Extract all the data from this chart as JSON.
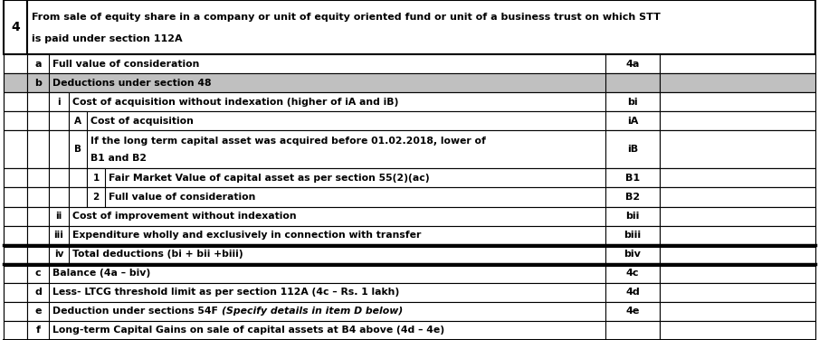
{
  "title_row": {
    "num": "4",
    "text_line1": "From sale of equity share in a company or unit of equity oriented fund or unit of a business trust on which STT",
    "text_line2": "is paid under section 112A"
  },
  "rows": [
    {
      "level": "a",
      "indent": 0,
      "label": "Full value of consideration",
      "code": "4a",
      "gray_bg": false,
      "double_border_top": false,
      "multiline": false,
      "mixed_style": false,
      "last_row": false
    },
    {
      "level": "b",
      "indent": 0,
      "label": "Deductions under section 48",
      "code": "",
      "gray_bg": true,
      "double_border_top": false,
      "multiline": false,
      "mixed_style": false,
      "last_row": false
    },
    {
      "level": "i",
      "indent": 1,
      "label": "Cost of acquisition without indexation (higher of iA and iB)",
      "code": "bi",
      "gray_bg": false,
      "double_border_top": false,
      "multiline": false,
      "mixed_style": false,
      "last_row": false
    },
    {
      "level": "A",
      "indent": 2,
      "label": "Cost of acquisition",
      "code": "iA",
      "gray_bg": false,
      "double_border_top": false,
      "multiline": false,
      "mixed_style": false,
      "last_row": false
    },
    {
      "level": "B",
      "indent": 2,
      "label": "If the long term capital asset was acquired before 01.02.2018, lower of\nB1 and B2",
      "code": "iB",
      "gray_bg": false,
      "double_border_top": false,
      "multiline": true,
      "mixed_style": false,
      "last_row": false
    },
    {
      "level": "1",
      "indent": 3,
      "label": "Fair Market Value of capital asset as per section 55(2)(ac)",
      "code": "B1",
      "gray_bg": false,
      "double_border_top": false,
      "multiline": false,
      "mixed_style": false,
      "last_row": false
    },
    {
      "level": "2",
      "indent": 3,
      "label": "Full value of consideration",
      "code": "B2",
      "gray_bg": false,
      "double_border_top": false,
      "multiline": false,
      "mixed_style": false,
      "last_row": false
    },
    {
      "level": "ii",
      "indent": 1,
      "label": "Cost of improvement without indexation",
      "code": "bii",
      "gray_bg": false,
      "double_border_top": false,
      "multiline": false,
      "mixed_style": false,
      "last_row": false
    },
    {
      "level": "iii",
      "indent": 1,
      "label": "Expenditure wholly and exclusively in connection with transfer",
      "code": "biii",
      "gray_bg": false,
      "double_border_top": false,
      "multiline": false,
      "mixed_style": false,
      "last_row": false
    },
    {
      "level": "iv",
      "indent": 1,
      "label": "Total deductions (bi + bii +biii)",
      "code": "biv",
      "gray_bg": false,
      "double_border_top": true,
      "multiline": false,
      "mixed_style": false,
      "last_row": false
    },
    {
      "level": "c",
      "indent": 0,
      "label": "Balance (4a – biv)",
      "code": "4c",
      "gray_bg": false,
      "double_border_top": true,
      "multiline": false,
      "mixed_style": false,
      "last_row": false
    },
    {
      "level": "d",
      "indent": 0,
      "label": "Less- LTCG threshold limit as per section 112A (4c – Rs. 1 lakh)",
      "code": "4d",
      "gray_bg": false,
      "double_border_top": false,
      "multiline": false,
      "mixed_style": false,
      "last_row": false
    },
    {
      "level": "e",
      "indent": 0,
      "label_normal": "Deduction under sections 54F ",
      "label_italic": "(Specify details in item D below)",
      "code": "4e",
      "gray_bg": false,
      "double_border_top": false,
      "multiline": false,
      "mixed_style": true,
      "last_row": false
    },
    {
      "level": "f",
      "indent": 0,
      "label": "Long-term Capital Gains on sale of capital assets at B4 above (4d – 4e)",
      "code": "",
      "gray_bg": false,
      "double_border_top": false,
      "multiline": false,
      "mixed_style": false,
      "last_row": true
    }
  ],
  "colors": {
    "gray_bg": "#c0c0c0",
    "white_bg": "#ffffff",
    "black": "#000000"
  }
}
